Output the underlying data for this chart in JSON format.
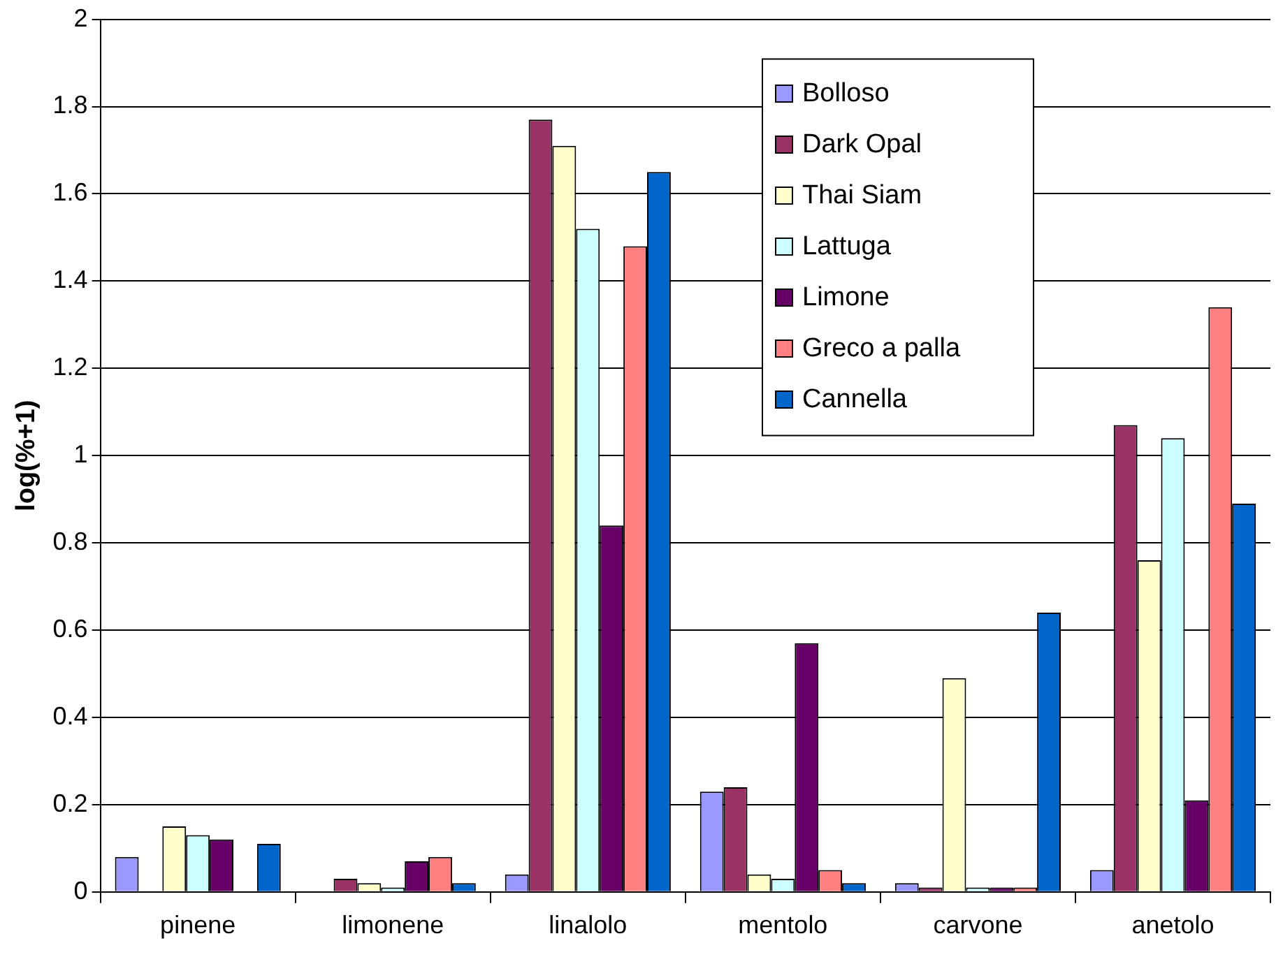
{
  "chart_data": {
    "type": "bar",
    "ylabel": "log(%+1)",
    "categories": [
      "pinene",
      "limonene",
      "linalolo",
      "mentolo",
      "carvone",
      "anetolo"
    ],
    "series": [
      {
        "name": "Bolloso",
        "color": "#9999ff",
        "values": [
          0.08,
          0,
          0.04,
          0.23,
          0.02,
          0.05
        ]
      },
      {
        "name": "Dark Opal",
        "color": "#993366",
        "values": [
          0,
          0.03,
          1.77,
          0.24,
          0.01,
          1.07
        ]
      },
      {
        "name": "Thai Siam",
        "color": "#ffffcc",
        "values": [
          0.15,
          0.02,
          1.71,
          0.04,
          0.49,
          0.76
        ]
      },
      {
        "name": "Lattuga",
        "color": "#ccffff",
        "values": [
          0.13,
          0.01,
          1.52,
          0.03,
          0.01,
          1.04
        ]
      },
      {
        "name": "Limone",
        "color": "#660066",
        "values": [
          0.12,
          0.07,
          0.84,
          0.57,
          0.01,
          0.21
        ]
      },
      {
        "name": "Greco a palla",
        "color": "#ff8080",
        "values": [
          0,
          0.08,
          1.48,
          0.05,
          0.01,
          1.34
        ]
      },
      {
        "name": "Cannella",
        "color": "#0066cc",
        "values": [
          0.11,
          0.02,
          1.65,
          0.02,
          0.64,
          0.89
        ]
      }
    ],
    "ylim": [
      0,
      2
    ],
    "yticks": [
      0,
      0.2,
      0.4,
      0.6,
      0.8,
      1,
      1.2,
      1.4,
      1.6,
      1.8,
      2
    ],
    "grid": "y",
    "legend": "top right"
  }
}
